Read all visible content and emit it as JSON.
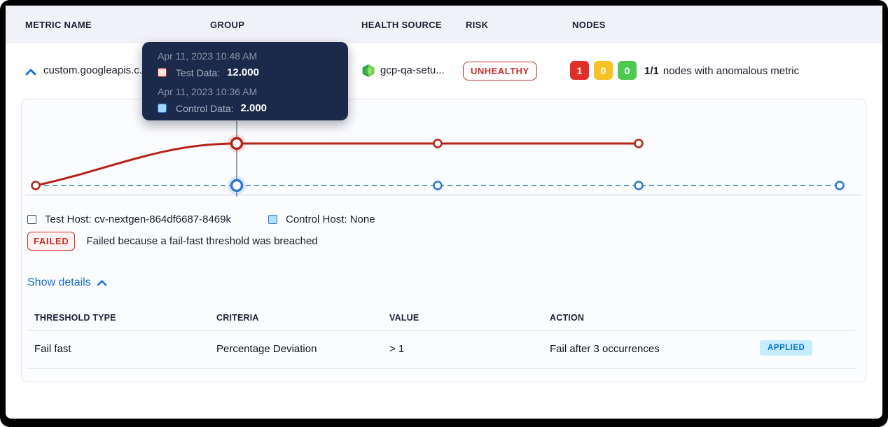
{
  "header": {
    "columns": [
      "METRIC NAME",
      "GROUP",
      "HEALTH SOURCE",
      "RISK",
      "NODES"
    ]
  },
  "row": {
    "metric_name": "custom.googleapis.c...",
    "health_source": "gcp-qa-setu...",
    "risk": "UNHEALTHY",
    "nodes": {
      "anomalous_count": "1",
      "warning_count": "0",
      "healthy_count": "0",
      "summary_ratio": "1/1",
      "summary_text": "nodes with anomalous metric"
    }
  },
  "tooltip": {
    "test": {
      "timestamp": "Apr 11, 2023 10:48 AM",
      "label": "Test Data:",
      "value": "12.000"
    },
    "control": {
      "timestamp": "Apr 11, 2023 10:36 AM",
      "label": "Control Data:",
      "value": "2.000"
    }
  },
  "chart_data": {
    "type": "line",
    "title": "",
    "x": [
      0,
      1,
      2,
      3,
      4
    ],
    "series": [
      {
        "name": "Test Data",
        "color": "#b42318",
        "dashed": false,
        "values": [
          2,
          12,
          12,
          12
        ]
      },
      {
        "name": "Control Data",
        "color": "#5b9bd8",
        "marker_color": "#2e77d0",
        "dashed": true,
        "values": [
          2,
          2,
          2,
          2,
          2
        ]
      }
    ],
    "hover_index": 1,
    "hover_values": {
      "test": 12.0,
      "control": 2.0
    },
    "grid": false,
    "legend_position": "below"
  },
  "legend": {
    "test": "Test Host: cv-nextgen-864df6687-8469k",
    "control": "Control Host: None"
  },
  "status": {
    "badge": "FAILED",
    "message": "Failed because a fail-fast threshold was breached"
  },
  "details_link": "Show details",
  "table": {
    "columns": [
      "THRESHOLD TYPE",
      "CRITERIA",
      "VALUE",
      "ACTION"
    ],
    "rows": [
      {
        "threshold_type": "Fail fast",
        "criteria": "Percentage Deviation",
        "value": "> 1",
        "action": "Fail after 3 occurrences",
        "badge": "APPLIED"
      }
    ]
  },
  "colors": {
    "risk_red": "#c9302c",
    "node_red": "#e12e26",
    "node_yellow": "#f5c124",
    "node_green": "#4dc952",
    "link_blue": "#1a6fd2",
    "failed_red": "#cf2b24",
    "applied_bg": "#c7ecfb",
    "applied_text": "#0278d5",
    "tooltip_bg": "#1b2a4a",
    "header_bg": "#f1f2f7"
  }
}
